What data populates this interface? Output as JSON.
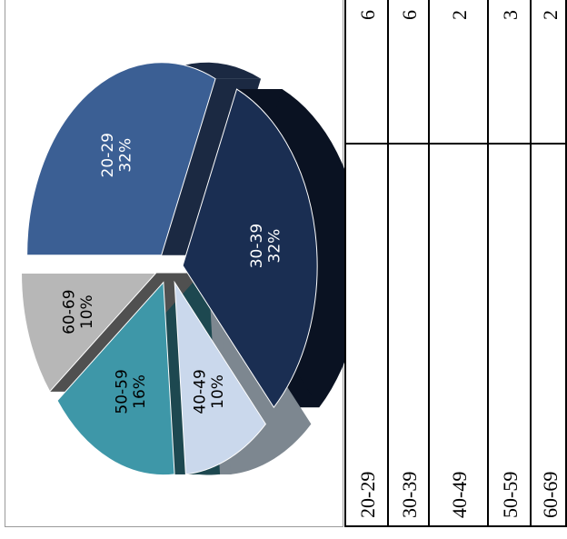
{
  "chart_data": {
    "type": "pie",
    "categories": [
      "20-29",
      "30-39",
      "40-49",
      "50-59",
      "60-69"
    ],
    "values": [
      6,
      6,
      2,
      3,
      2
    ],
    "percent_labels": [
      "32%",
      "32%",
      "10%",
      "16%",
      "10%"
    ],
    "colors": [
      "#3b5f94",
      "#1a2e52",
      "#cad8ec",
      "#3e97a8",
      "#b7b7b7"
    ],
    "side_colors": [
      "#1b2942",
      "#0a1222",
      "#7d8790",
      "#1d4850",
      "#505050"
    ],
    "label_colors": [
      "#ffffff",
      "#ffffff",
      "#000000",
      "#000000",
      "#000000"
    ],
    "exploded": true,
    "three_d": true
  },
  "table": {
    "rows": [
      {
        "label": "20-29",
        "value": "6"
      },
      {
        "label": "30-39",
        "value": "6"
      },
      {
        "label": "40-49",
        "value": "2"
      },
      {
        "label": "50-59",
        "value": "3"
      },
      {
        "label": "60-69",
        "value": "2"
      }
    ]
  }
}
